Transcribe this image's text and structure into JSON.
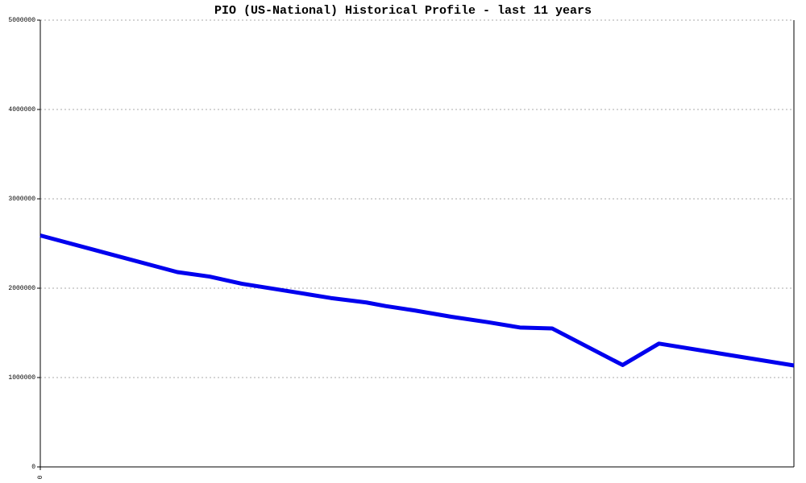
{
  "chart_data": {
    "type": "line",
    "title": "PIO (US-National) Historical Profile - last 11 years",
    "x": [
      0,
      2,
      2.47,
      2.94,
      3.76,
      4.24,
      4.76,
      5.04,
      5.47,
      6,
      6.53,
      7,
      7.47,
      8.5,
      9.03,
      11
    ],
    "series": [
      {
        "name": "PIO",
        "color": "#0000ee",
        "values": [
          2590000,
          2180000,
          2130000,
          2050000,
          1950000,
          1890000,
          1840000,
          1800000,
          1750000,
          1680000,
          1620000,
          1560000,
          1550000,
          1140000,
          1380000,
          1135000
        ]
      }
    ],
    "xlim": [
      0,
      11
    ],
    "xticks": [
      0
    ],
    "ylim": [
      0,
      5000000
    ],
    "yticks": [
      0,
      1000000,
      2000000,
      3000000,
      4000000,
      5000000
    ],
    "grid": true
  }
}
